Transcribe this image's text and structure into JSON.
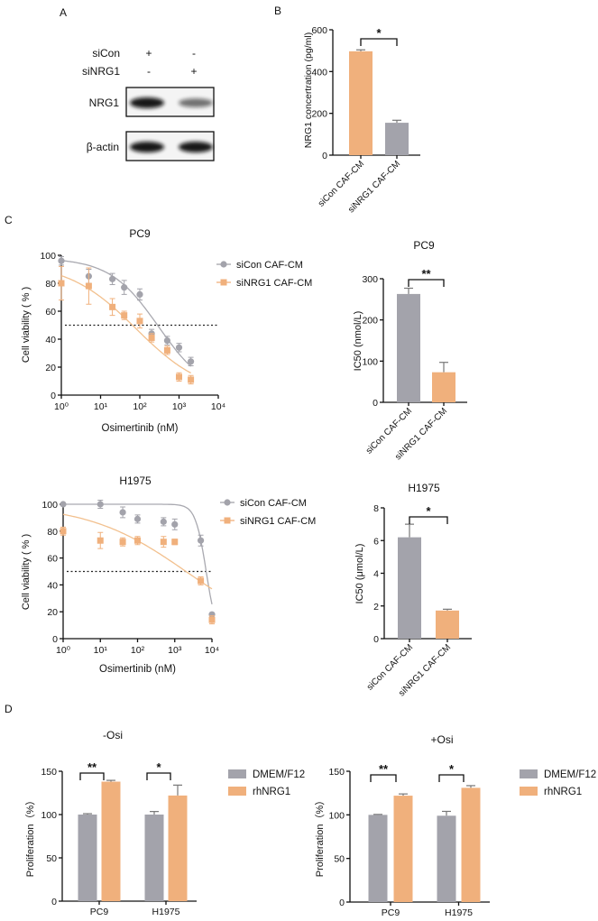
{
  "panel_labels": [
    "A",
    "B",
    "C",
    "D"
  ],
  "panel_a": {
    "conditions": [
      {
        "label": "siCon",
        "marks": [
          "+",
          "-"
        ]
      },
      {
        "label": "siNRG1",
        "marks": [
          "-",
          "+"
        ]
      }
    ],
    "blots": [
      {
        "label": "NRG1",
        "band_intensity": [
          1.0,
          0.45
        ]
      },
      {
        "label": "β-actin",
        "band_intensity": [
          1.0,
          1.0
        ]
      }
    ]
  },
  "colors": {
    "gray": "#a3a3ab",
    "orange": "#f0b07c",
    "curve_gray": "#a9a9b0",
    "curve_orange": "#f2c08e"
  },
  "chart_data": [
    {
      "panel": "B",
      "type": "bar",
      "title": "",
      "categories": [
        "siCon CAF-CM",
        "siNRG1 CAF-CM"
      ],
      "values": [
        497,
        155
      ],
      "errors": [
        7,
        12
      ],
      "bar_colors": [
        "orange",
        "gray"
      ],
      "ylabel": "NRG1 concertration (pg/ml)",
      "xlabel": "",
      "ylim": [
        0,
        600
      ],
      "yticks": [
        "0",
        "200",
        "400",
        "600"
      ],
      "significance": [
        {
          "between": [
            0,
            1
          ],
          "label": "*"
        }
      ]
    },
    {
      "panel": "C",
      "type": "scatter",
      "title": "PC9",
      "xlabel": "Osimertinib (nM)",
      "ylabel": "Cell viability ( % )",
      "xscale": "log",
      "xlim": [
        1,
        10000
      ],
      "xticks": [
        1,
        10,
        100,
        1000,
        10000
      ],
      "xtick_labels": [
        "10⁰",
        "10¹",
        "10²",
        "10³",
        "10⁴"
      ],
      "ylim": [
        0,
        100
      ],
      "yticks": [
        "0",
        "20",
        "40",
        "60",
        "80",
        "100"
      ],
      "reference_line": 50,
      "legend": "right",
      "series": [
        {
          "name": "siCon CAF-CM",
          "marker": "circle",
          "color": "gray",
          "x": [
            1,
            5,
            20,
            40,
            100,
            200,
            500,
            1000,
            2000
          ],
          "y": [
            96,
            85,
            83,
            77,
            72,
            44,
            39,
            34,
            24
          ],
          "err": [
            3,
            5,
            4,
            5,
            4,
            3,
            3,
            3,
            3
          ]
        },
        {
          "name": "siNRG1 CAF-CM",
          "marker": "square",
          "color": "orange",
          "x": [
            1,
            5,
            20,
            40,
            100,
            200,
            500,
            1000,
            2000
          ],
          "y": [
            80,
            78,
            63,
            57,
            53,
            41,
            32,
            13,
            11
          ],
          "err": [
            12,
            13,
            6,
            3,
            5,
            3,
            3,
            3,
            3
          ]
        }
      ]
    },
    {
      "panel": "C",
      "type": "bar",
      "title": "PC9",
      "categories": [
        "siCon CAF-CM",
        "siNRG1 CAF-CM"
      ],
      "values": [
        263,
        73
      ],
      "errors": [
        14,
        24
      ],
      "bar_colors": [
        "gray",
        "orange"
      ],
      "ylabel": "IC50 (nmol/L)",
      "xlabel": "",
      "ylim": [
        0,
        300
      ],
      "yticks": [
        "0",
        "100",
        "200",
        "300"
      ],
      "significance": [
        {
          "between": [
            0,
            1
          ],
          "label": "**"
        }
      ]
    },
    {
      "panel": "C",
      "type": "scatter",
      "title": "H1975",
      "xlabel": "Osimertinib (nM)",
      "ylabel": "Cell viability ( % )",
      "xscale": "log",
      "xlim": [
        1,
        10000
      ],
      "xticks": [
        1,
        10,
        100,
        1000,
        10000
      ],
      "xtick_labels": [
        "10⁰",
        "10¹",
        "10²",
        "10³",
        "10⁴"
      ],
      "ylim": [
        0,
        100
      ],
      "yticks": [
        "0",
        "20",
        "40",
        "60",
        "80",
        "100"
      ],
      "reference_line": 50,
      "legend": "right",
      "series": [
        {
          "name": "siCon CAF-CM",
          "marker": "circle",
          "color": "gray",
          "x": [
            1,
            10,
            40,
            100,
            500,
            1000,
            5000,
            10000
          ],
          "y": [
            100,
            100,
            94,
            89,
            87,
            85,
            73,
            18
          ],
          "err": [
            1,
            3,
            4,
            3,
            3,
            4,
            4,
            1
          ]
        },
        {
          "name": "siNRG1 CAF-CM",
          "marker": "square",
          "color": "orange",
          "x": [
            1,
            10,
            40,
            100,
            500,
            1000,
            5000,
            10000
          ],
          "y": [
            80,
            73,
            72,
            73,
            72,
            72,
            43,
            14
          ],
          "err": [
            3,
            6,
            3,
            3,
            4,
            2,
            3,
            3
          ]
        }
      ]
    },
    {
      "panel": "C",
      "type": "bar",
      "title": "H1975",
      "categories": [
        "siCon CAF-CM",
        "siNRG1 CAF-CM"
      ],
      "values": [
        6.2,
        1.72
      ],
      "errors": [
        0.8,
        0.08
      ],
      "bar_colors": [
        "gray",
        "orange"
      ],
      "ylabel": "IC50 (μmol/L)",
      "xlabel": "",
      "ylim": [
        0,
        8
      ],
      "yticks": [
        "0",
        "2",
        "4",
        "6",
        "8"
      ],
      "significance": [
        {
          "between": [
            0,
            1
          ],
          "label": "*"
        }
      ]
    },
    {
      "panel": "D",
      "type": "bar",
      "title": "-Osi",
      "categories": [
        "PC9",
        "H1975"
      ],
      "ylabel": "Proliferation（%）",
      "xlabel": "",
      "ylim": [
        0,
        150
      ],
      "yticks": [
        "0",
        "50",
        "100",
        "150"
      ],
      "legend": "right",
      "series": [
        {
          "name": "DMEM/F12",
          "color": "gray",
          "values": [
            100,
            100
          ],
          "errors": [
            1,
            3.5
          ]
        },
        {
          "name": "rhNRG1",
          "color": "orange",
          "values": [
            138,
            122
          ],
          "errors": [
            1.5,
            12
          ]
        }
      ],
      "significance": [
        {
          "group": 0,
          "label": "**"
        },
        {
          "group": 1,
          "label": "*"
        }
      ]
    },
    {
      "panel": "D",
      "type": "bar",
      "title": "+Osi",
      "categories": [
        "PC9",
        "H1975"
      ],
      "ylabel": "Proliferation（%）",
      "xlabel": "",
      "ylim": [
        0,
        150
      ],
      "yticks": [
        "0",
        "50",
        "100",
        "150"
      ],
      "legend": "right",
      "series": [
        {
          "name": "DMEM/F12",
          "color": "gray",
          "values": [
            100,
            99
          ],
          "errors": [
            0.5,
            5
          ]
        },
        {
          "name": "rhNRG1",
          "color": "orange",
          "values": [
            122,
            131
          ],
          "errors": [
            2,
            2.5
          ]
        }
      ],
      "significance": [
        {
          "group": 0,
          "label": "**"
        },
        {
          "group": 1,
          "label": "*"
        }
      ]
    }
  ]
}
